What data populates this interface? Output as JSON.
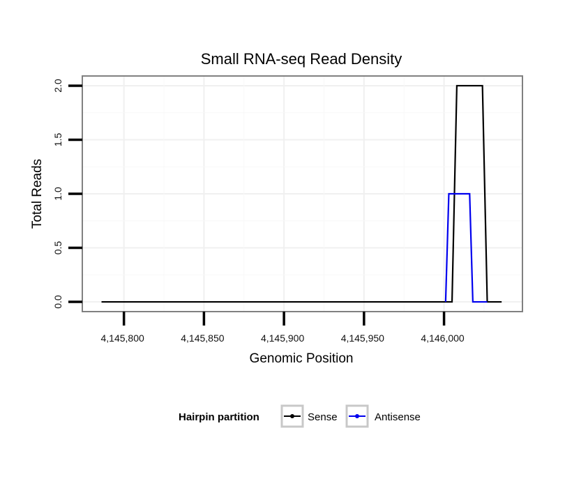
{
  "chart_data": {
    "type": "line",
    "title": "Small RNA-seq Read Density",
    "xlabel": "Genomic Position",
    "ylabel": "Total Reads",
    "xlim": [
      4145774,
      4146049
    ],
    "ylim": [
      -0.09,
      2.09
    ],
    "x_ticks": [
      4145800,
      4145850,
      4145900,
      4145950,
      4146000
    ],
    "x_tick_labels": [
      "4,145,800",
      "4,145,850",
      "4,145,900",
      "4,145,950",
      "4,146,000"
    ],
    "y_ticks": [
      0.0,
      0.5,
      1.0,
      1.5,
      2.0
    ],
    "y_tick_labels": [
      "0.0",
      "0.5",
      "1.0",
      "1.5",
      "2.0"
    ],
    "grid": true,
    "legend": {
      "title": "Hairpin partition",
      "position": "bottom",
      "entries": [
        {
          "name": "Sense",
          "color": "#000000"
        },
        {
          "name": "Antisense",
          "color": "#0000ee"
        }
      ]
    },
    "series": [
      {
        "name": "Sense",
        "color": "#000000",
        "x": [
          4145786,
          4146005,
          4146008,
          4146024,
          4146027,
          4146036
        ],
        "y": [
          0,
          0,
          2,
          2,
          0,
          0
        ]
      },
      {
        "name": "Antisense",
        "color": "#0000ee",
        "x": [
          4146001,
          4146003,
          4146016,
          4146018,
          4146027
        ],
        "y": [
          0,
          1,
          1,
          0,
          0
        ]
      }
    ]
  }
}
